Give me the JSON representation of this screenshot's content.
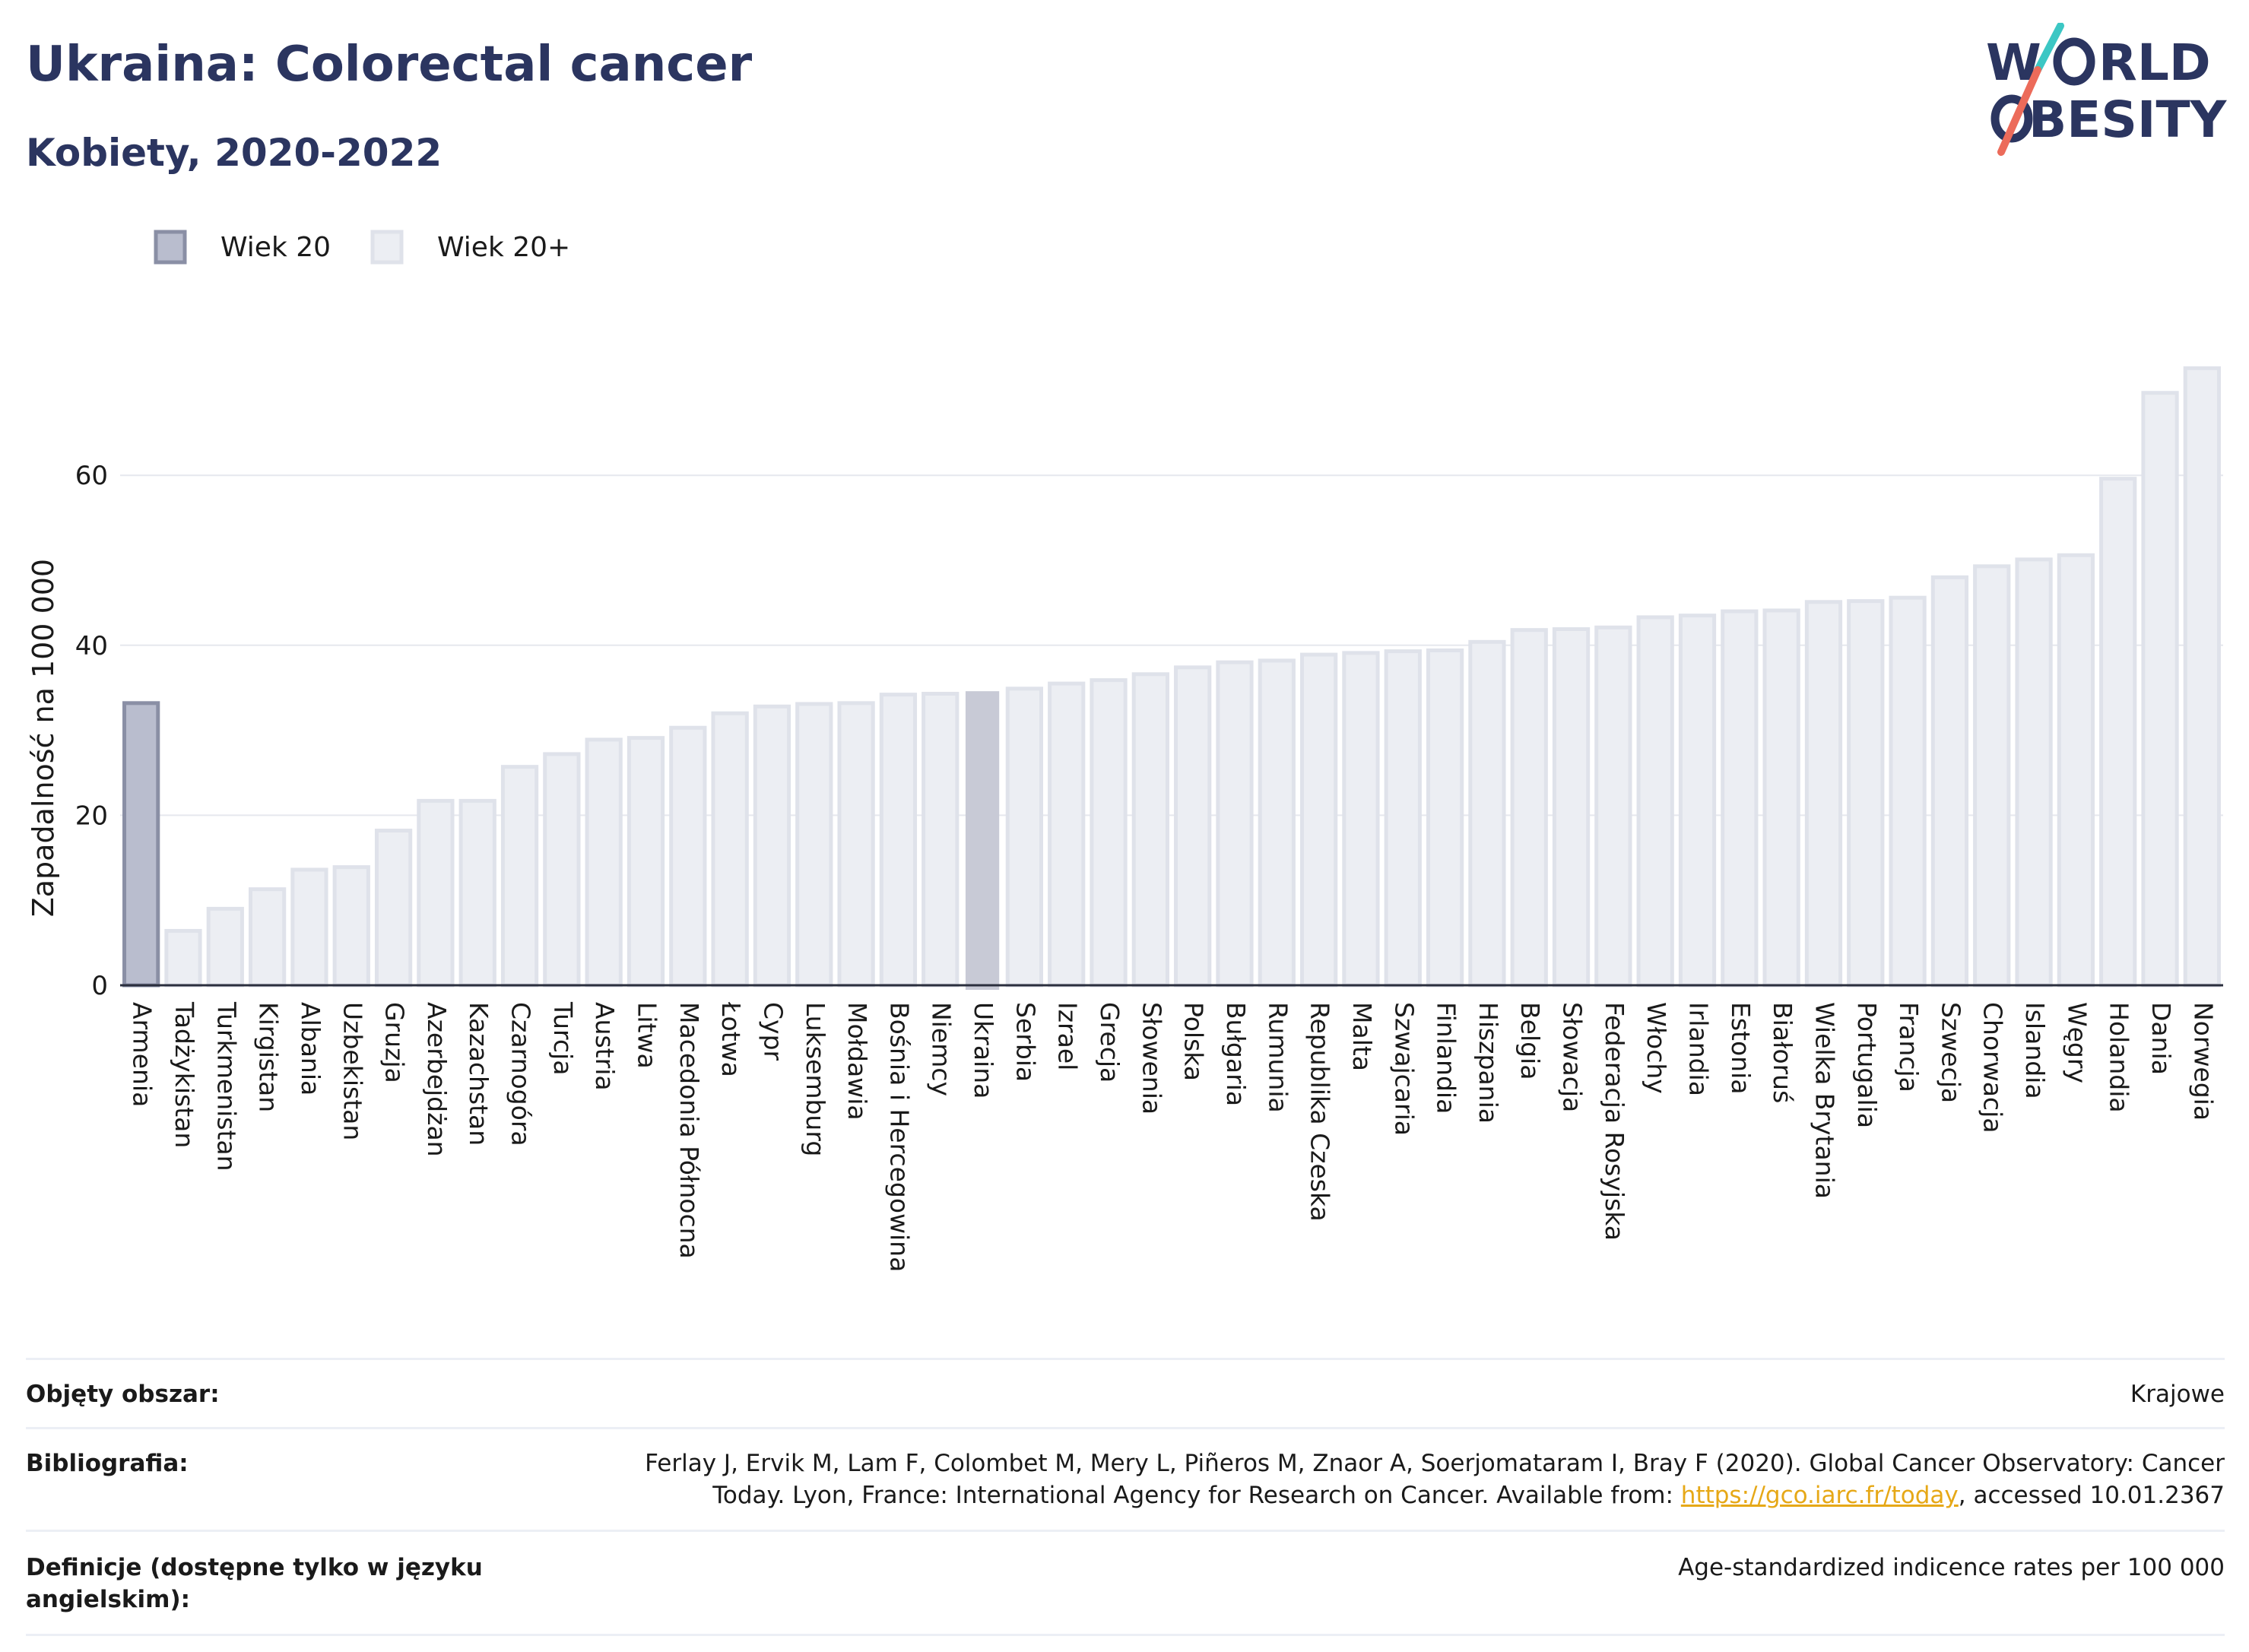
{
  "header": {
    "title": "Ukraina: Colorectal cancer",
    "subtitle": "Kobiety, 2020-2022"
  },
  "logo": {
    "line1": "WORLD",
    "line2": "OBESITY",
    "colors": [
      "#2b3560",
      "#3cc7c4",
      "#ec6b5a"
    ]
  },
  "chart_data": {
    "type": "bar",
    "ylabel": "Zapadalność na 100 000",
    "xlabel": "",
    "ylim": [
      0,
      73
    ],
    "yticks": [
      0,
      20,
      40,
      60
    ],
    "grid": true,
    "legend_position": "top-left",
    "legend": [
      {
        "label": "Wiek 20",
        "color": "#b9bdce",
        "stroke": "#8a8fa5"
      },
      {
        "label": "Wiek 20+",
        "color": "#eceef3",
        "stroke": "#dfe2ea"
      }
    ],
    "highlight_category": "Ukraina",
    "highlight_color": "#c8cad6",
    "categories": [
      "Armenia",
      "Tadżykistan",
      "Turkmenistan",
      "Kirgistan",
      "Albania",
      "Uzbekistan",
      "Gruzja",
      "Azerbejdżan",
      "Kazachstan",
      "Czarnogóra",
      "Turcja",
      "Austria",
      "Litwa",
      "Macedonia Północna",
      "Łotwa",
      "Cypr",
      "Luksemburg",
      "Mołdawia",
      "Bośnia i Hercegowina",
      "Niemcy",
      "Ukraina",
      "Serbia",
      "Izrael",
      "Grecja",
      "Słowenia",
      "Polska",
      "Bułgaria",
      "Rumunia",
      "Republika Czeska",
      "Malta",
      "Szwajcaria",
      "Finlandia",
      "Hiszpania",
      "Belgia",
      "Słowacja",
      "Federacja Rosyjska",
      "Włochy",
      "Irlandia",
      "Estonia",
      "Białoruś",
      "Wielka Brytania",
      "Portugalia",
      "Francja",
      "Szwecja",
      "Chorwacja",
      "Islandia",
      "Węgry",
      "Holandia",
      "Dania",
      "Norwegia"
    ],
    "series": [
      {
        "name": "Wiek 20+",
        "values": [
          33.2,
          6.4,
          9.0,
          11.3,
          13.6,
          13.9,
          18.2,
          21.7,
          21.7,
          25.7,
          27.2,
          28.9,
          29.1,
          30.3,
          32.0,
          32.8,
          33.1,
          33.2,
          34.2,
          34.3,
          34.6,
          34.9,
          35.5,
          35.9,
          36.6,
          37.4,
          38.0,
          38.2,
          38.9,
          39.1,
          39.3,
          39.4,
          40.4,
          41.8,
          41.9,
          42.1,
          43.3,
          43.5,
          44.0,
          44.1,
          45.1,
          45.2,
          45.6,
          48.0,
          49.3,
          50.1,
          50.6,
          59.6,
          69.7,
          72.6
        ]
      }
    ]
  },
  "info": [
    {
      "label": "Objęty obszar:",
      "value": "Krajowe"
    },
    {
      "label": "Bibliografia:",
      "value_before": "Ferlay J, Ervik M, Lam F, Colombet M, Mery L, Piñeros M, Znaor A, Soerjomataram I, Bray F (2020). Global Cancer Observatory: Cancer Today. Lyon, France: International Agency for Research on Cancer. Available from: ",
      "link": "https://gco.iarc.fr/today",
      "value_after": ", accessed 10.01.2367"
    },
    {
      "label": "Definicje (dostępne tylko w języku angielskim):",
      "value": "Age-standardized indicence rates per 100 000"
    }
  ]
}
